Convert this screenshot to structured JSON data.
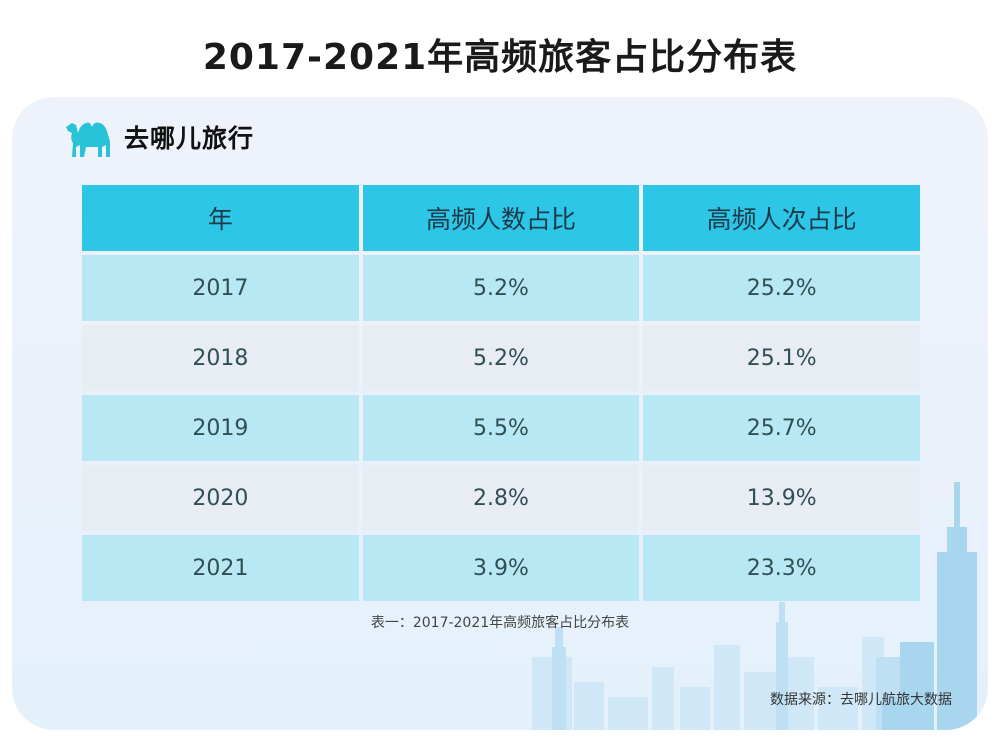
{
  "title": "2017-2021年高频旅客占比分布表",
  "brand": {
    "name": "去哪儿旅行",
    "logo": "camel-icon",
    "logo_color": "#29c3d8"
  },
  "colors": {
    "header": "#2ec6e6",
    "row_a": "#b9e8f5",
    "row_b": "#e8edf4",
    "card": "#eef2fb"
  },
  "chart_data": {
    "type": "table",
    "title": "2017-2021年高频旅客占比分布表",
    "columns": [
      "年",
      "高频人数占比",
      "高频人次占比"
    ],
    "rows": [
      [
        "2017",
        "5.2%",
        "25.2%"
      ],
      [
        "2018",
        "5.2%",
        "25.1%"
      ],
      [
        "2019",
        "5.5%",
        "25.7%"
      ],
      [
        "2020",
        "2.8%",
        "13.9%"
      ],
      [
        "2021",
        "3.9%",
        "23.3%"
      ]
    ]
  },
  "caption": "表一：2017-2021年高频旅客占比分布表",
  "source": "数据来源：去哪儿航旅大数据"
}
